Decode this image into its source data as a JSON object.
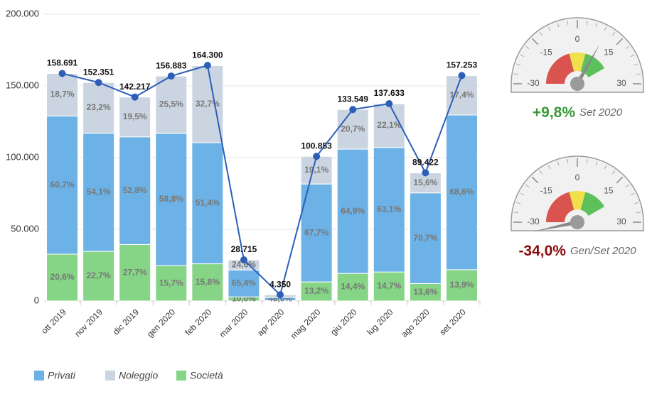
{
  "chart_data": [
    {
      "type": "stacked-bar-line",
      "categories": [
        "ott 2019",
        "nov 2019",
        "dic 2019",
        "gen 2020",
        "feb 2020",
        "mar 2020",
        "apr 2020",
        "mag 2020",
        "giu 2020",
        "lug 2020",
        "ago 2020",
        "set 2020"
      ],
      "series": [
        {
          "name": "Privati",
          "color": "#6cb2e6",
          "values": [
            60.7,
            54.1,
            52.8,
            58.8,
            51.4,
            65.4,
            48.0,
            67.7,
            64.9,
            63.1,
            70.7,
            68.6
          ],
          "value_labels": [
            "60,7%",
            "54,1%",
            "52,8%",
            "58,8%",
            "51,4%",
            "65,4%",
            "48,0%",
            "67,7%",
            "64,9%",
            "63,1%",
            "70,7%",
            "68,6%"
          ]
        },
        {
          "name": "Noleggio",
          "color": "#cbd5e1",
          "values": [
            18.7,
            23.2,
            19.5,
            25.5,
            32.7,
            24.6,
            44.3,
            19.1,
            20.7,
            22.1,
            15.6,
            17.4
          ],
          "value_labels": [
            "18,7%",
            "23,2%",
            "19,5%",
            "25,5%",
            "32,7%",
            "24,6%",
            null,
            "19,1%",
            "20,7%",
            "22,1%",
            "15,6%",
            "17,4%"
          ]
        },
        {
          "name": "Società",
          "color": "#86d486",
          "values": [
            20.6,
            22.7,
            27.7,
            15.7,
            15.8,
            10.0,
            7.7,
            13.2,
            14.4,
            14.7,
            13.6,
            13.9
          ],
          "value_labels": [
            "20,6%",
            "22,7%",
            "27,7%",
            "15,7%",
            "15,8%",
            "10,0%",
            null,
            "13,2%",
            "14,4%",
            "14,7%",
            "13,6%",
            "13,9%"
          ]
        }
      ],
      "totals": {
        "color": "#2d5fb8",
        "values": [
          158691,
          152351,
          142217,
          156883,
          164300,
          28715,
          4350,
          100853,
          133549,
          137633,
          89422,
          157253
        ],
        "value_labels": [
          "158.691",
          "152.351",
          "142.217",
          "156.883",
          "164.300",
          "28.715",
          "4.350",
          "100.853",
          "133.549",
          "137.633",
          "89.422",
          "157.253"
        ]
      },
      "ylim": [
        0,
        200000
      ],
      "yticks": [
        0,
        {
          "value": 50000,
          "label": "50.000"
        },
        {
          "value": 100000,
          "label": "100.000"
        },
        {
          "value": 150000,
          "label": "150.000"
        },
        {
          "value": 200000,
          "label": "200.000"
        }
      ],
      "grid": true,
      "legend": "bottom-left"
    },
    {
      "type": "gauge",
      "value": 9.8,
      "value_label": "+9,8%",
      "label": "Set 2020",
      "color": "#3a9a3a",
      "ylim": [
        -30,
        30
      ],
      "yticks": [
        -30,
        -15,
        0,
        15,
        30
      ],
      "bands": [
        {
          "from": -30,
          "to": -5,
          "color": "#d9534f"
        },
        {
          "from": -5,
          "to": 5,
          "color": "#f0e04a"
        },
        {
          "from": 5,
          "to": 20,
          "color": "#5cc05c"
        }
      ]
    },
    {
      "type": "gauge",
      "value": -34.0,
      "value_label": "-34,0%",
      "label": "Gen/Set 2020",
      "color": "#8b0a0a",
      "ylim": [
        -30,
        30
      ],
      "yticks": [
        -30,
        -15,
        0,
        15,
        30
      ],
      "bands": [
        {
          "from": -30,
          "to": -5,
          "color": "#d9534f"
        },
        {
          "from": -5,
          "to": 5,
          "color": "#f0e04a"
        },
        {
          "from": 5,
          "to": 20,
          "color": "#5cc05c"
        }
      ]
    }
  ]
}
